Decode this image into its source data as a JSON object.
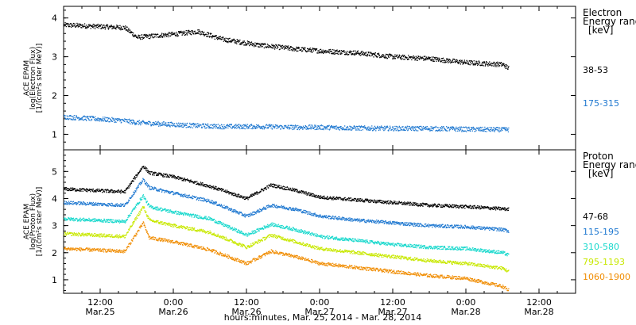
{
  "chart_data": [
    {
      "type": "scatter",
      "panel": "electron",
      "ylabel": [
        "ACE EPAM",
        "log(Electron Flux)",
        "[1/(cm²s ster MeV)]"
      ],
      "ylim": [
        0.6,
        4.3
      ],
      "yticks": [
        1,
        2,
        3,
        4
      ],
      "legend_title": [
        "Electron",
        "Energy ranges",
        "[keV]"
      ],
      "legend_placement": "right",
      "x": [
        "2014-03-25 06:00",
        "2014-03-25 16:00",
        "2014-03-25 18:00",
        "2014-03-26 00:00",
        "2014-03-26 04:00",
        "2014-03-26 08:00",
        "2014-03-26 14:00",
        "2014-03-26 20:00",
        "2014-03-27 00:00",
        "2014-03-27 06:00",
        "2014-03-27 12:00",
        "2014-03-27 18:00",
        "2014-03-28 00:00",
        "2014-03-28 06:00",
        "2014-03-28 07:00"
      ],
      "series": [
        {
          "name": "38-53",
          "color": "#000000",
          "values": [
            3.82,
            3.75,
            3.5,
            3.58,
            3.65,
            3.45,
            3.3,
            3.2,
            3.15,
            3.1,
            3.0,
            2.95,
            2.85,
            2.8,
            2.7
          ]
        },
        {
          "name": "175-315",
          "color": "#1f78d0",
          "values": [
            1.45,
            1.35,
            1.3,
            1.25,
            1.22,
            1.2,
            1.2,
            1.18,
            1.18,
            1.16,
            1.15,
            1.15,
            1.13,
            1.12,
            1.12
          ]
        }
      ]
    },
    {
      "type": "scatter",
      "panel": "proton",
      "ylabel": [
        "ACE EPAM",
        "log(Proton Flux)",
        "[1/(cm²s ster MeV)]"
      ],
      "ylim": [
        0.5,
        5.8
      ],
      "yticks": [
        1,
        2,
        3,
        4,
        5
      ],
      "legend_title": [
        "Proton",
        "Energy ranges",
        "[keV]"
      ],
      "legend_placement": "right",
      "x": [
        "2014-03-25 06:00",
        "2014-03-25 16:00",
        "2014-03-25 19:00",
        "2014-03-25 20:00",
        "2014-03-26 00:00",
        "2014-03-26 06:00",
        "2014-03-26 12:00",
        "2014-03-26 16:00",
        "2014-03-26 20:00",
        "2014-03-27 00:00",
        "2014-03-27 06:00",
        "2014-03-27 12:00",
        "2014-03-27 18:00",
        "2014-03-28 00:00",
        "2014-03-28 06:00",
        "2014-03-28 07:00"
      ],
      "series": [
        {
          "name": "47-68",
          "color": "#000000",
          "values": [
            4.35,
            4.25,
            5.2,
            4.95,
            4.8,
            4.45,
            4.0,
            4.5,
            4.3,
            4.05,
            3.95,
            3.85,
            3.75,
            3.7,
            3.62,
            3.6
          ]
        },
        {
          "name": "115-195",
          "color": "#1f78d0",
          "values": [
            3.85,
            3.75,
            4.7,
            4.4,
            4.2,
            3.9,
            3.35,
            3.75,
            3.6,
            3.35,
            3.2,
            3.1,
            3.0,
            2.95,
            2.85,
            2.8
          ]
        },
        {
          "name": "310-580",
          "color": "#17d8cc",
          "values": [
            3.25,
            3.15,
            4.1,
            3.7,
            3.5,
            3.25,
            2.65,
            3.05,
            2.85,
            2.6,
            2.45,
            2.3,
            2.2,
            2.15,
            2.0,
            1.9
          ]
        },
        {
          "name": "795-1193",
          "color": "#c8e800",
          "values": [
            2.7,
            2.6,
            3.7,
            3.2,
            3.0,
            2.75,
            2.2,
            2.65,
            2.4,
            2.15,
            2.0,
            1.85,
            1.7,
            1.6,
            1.42,
            1.3
          ]
        },
        {
          "name": "1060-1900",
          "color": "#f08c00",
          "values": [
            2.15,
            2.05,
            3.1,
            2.55,
            2.4,
            2.1,
            1.6,
            2.05,
            1.85,
            1.6,
            1.45,
            1.3,
            1.15,
            1.05,
            0.75,
            0.6
          ]
        }
      ]
    }
  ],
  "x_axis": {
    "tick_labels": [
      {
        "time": "12:00",
        "date": "Mar.25"
      },
      {
        "time": "0:00",
        "date": "Mar.26"
      },
      {
        "time": "12:00",
        "date": "Mar.26"
      },
      {
        "time": "0:00",
        "date": "Mar.27"
      },
      {
        "time": "12:00",
        "date": "Mar.27"
      },
      {
        "time": "0:00",
        "date": "Mar.28"
      },
      {
        "time": "12:00",
        "date": "Mar.28"
      }
    ],
    "xlabel": "hours:minutes, Mar. 25, 2014 - Mar. 28, 2014"
  }
}
